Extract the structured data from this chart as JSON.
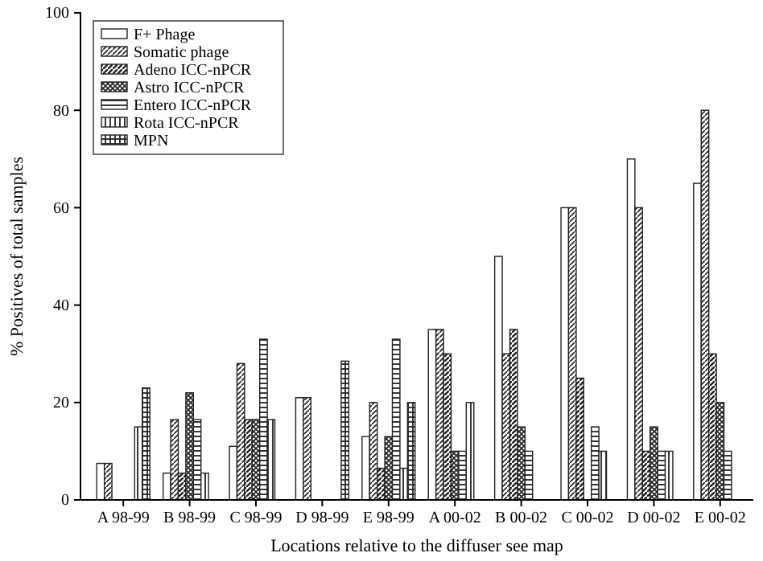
{
  "chart_data": {
    "type": "bar",
    "xlabel": "Locations relative to the diffuser see map",
    "ylabel": "% Positives of total samples",
    "categories": [
      "A 98-99",
      "B 98-99",
      "C 98-99",
      "D 98-99",
      "E 98-99",
      "A 00-02",
      "B 00-02",
      "C 00-02",
      "D 00-02",
      "E 00-02"
    ],
    "series": [
      {
        "name": "F+ Phage",
        "values": [
          7.5,
          5.5,
          11,
          21,
          13,
          35,
          50,
          60,
          70,
          65
        ]
      },
      {
        "name": "Somatic phage",
        "values": [
          7.5,
          16.5,
          28,
          21,
          20,
          35,
          30,
          60,
          60,
          80
        ]
      },
      {
        "name": "Adeno ICC-nPCR",
        "values": [
          0,
          5.5,
          16.5,
          0,
          6.5,
          30,
          35,
          25,
          10,
          30
        ]
      },
      {
        "name": "Astro ICC-nPCR",
        "values": [
          0,
          22,
          16.5,
          0,
          13,
          10,
          15,
          0,
          15,
          20
        ]
      },
      {
        "name": "Entero ICC-nPCR",
        "values": [
          0,
          16.5,
          33,
          0,
          33,
          10,
          10,
          15,
          10,
          10
        ]
      },
      {
        "name": "Rota ICC-nPCR",
        "values": [
          15,
          5.5,
          16.5,
          0,
          6.5,
          20,
          0,
          10,
          10,
          0
        ]
      },
      {
        "name": "MPN",
        "values": [
          23,
          0,
          0,
          28.5,
          20,
          0,
          0,
          0,
          0,
          0
        ]
      }
    ],
    "ylim": [
      0,
      100
    ],
    "yticks": [
      0,
      20,
      40,
      60,
      80,
      100
    ],
    "legend": "top left"
  }
}
